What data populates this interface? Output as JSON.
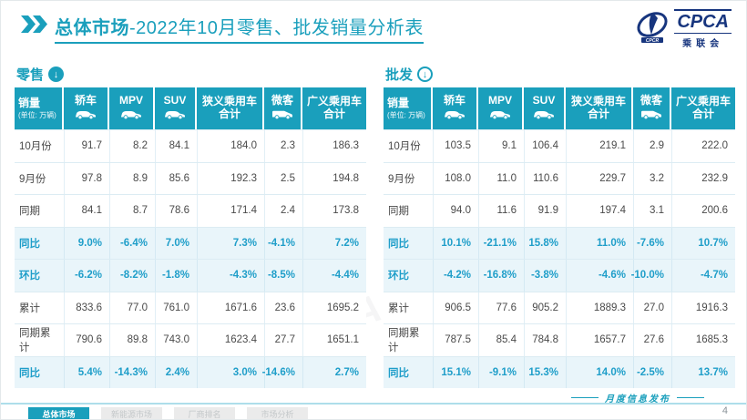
{
  "header": {
    "title_strong": "总体市场",
    "title_rest": "-2022年10月零售、批发销量分析表",
    "logo": {
      "cpca": "CPCA",
      "sub": "乘联会"
    }
  },
  "columns": [
    {
      "key": "sales",
      "label": "销量",
      "sub": "(单位: 万辆)"
    },
    {
      "key": "sedan",
      "label": "轿车",
      "icon": "car"
    },
    {
      "key": "mpv",
      "label": "MPV",
      "icon": "car"
    },
    {
      "key": "suv",
      "label": "SUV",
      "icon": "car"
    },
    {
      "key": "narrow-pv-total",
      "label": "狭义乘用车",
      "label2": "合计"
    },
    {
      "key": "microvan",
      "label": "微客",
      "icon": "van"
    },
    {
      "key": "broad-pv-total",
      "label": "广义乘用车",
      "label2": "合计"
    }
  ],
  "tables": [
    {
      "name": "零售",
      "rows": [
        {
          "label": "10月份",
          "type": "num",
          "values": [
            "91.7",
            "8.2",
            "84.1",
            "184.0",
            "2.3",
            "186.3"
          ]
        },
        {
          "label": "9月份",
          "type": "num",
          "values": [
            "97.8",
            "8.9",
            "85.6",
            "192.3",
            "2.5",
            "194.8"
          ]
        },
        {
          "label": "同期",
          "type": "num",
          "values": [
            "84.1",
            "8.7",
            "78.6",
            "171.4",
            "2.4",
            "173.8"
          ]
        },
        {
          "label": "同比",
          "type": "pct",
          "values": [
            "9.0%",
            "-6.4%",
            "7.0%",
            "7.3%",
            "-4.1%",
            "7.2%"
          ]
        },
        {
          "label": "环比",
          "type": "pct",
          "values": [
            "-6.2%",
            "-8.2%",
            "-1.8%",
            "-4.3%",
            "-8.5%",
            "-4.4%"
          ]
        },
        {
          "label": "累计",
          "type": "num",
          "values": [
            "833.6",
            "77.0",
            "761.0",
            "1671.6",
            "23.6",
            "1695.2"
          ]
        },
        {
          "label": "同期累计",
          "type": "num",
          "values": [
            "790.6",
            "89.8",
            "743.0",
            "1623.4",
            "27.7",
            "1651.1"
          ]
        },
        {
          "label": "同比",
          "type": "pct",
          "values": [
            "5.4%",
            "-14.3%",
            "2.4%",
            "3.0%",
            "-14.6%",
            "2.7%"
          ]
        }
      ]
    },
    {
      "name": "批发",
      "rows": [
        {
          "label": "10月份",
          "type": "num",
          "values": [
            "103.5",
            "9.1",
            "106.4",
            "219.1",
            "2.9",
            "222.0"
          ]
        },
        {
          "label": "9月份",
          "type": "num",
          "values": [
            "108.0",
            "11.0",
            "110.6",
            "229.7",
            "3.2",
            "232.9"
          ]
        },
        {
          "label": "同期",
          "type": "num",
          "values": [
            "94.0",
            "11.6",
            "91.9",
            "197.4",
            "3.1",
            "200.6"
          ]
        },
        {
          "label": "同比",
          "type": "pct",
          "values": [
            "10.1%",
            "-21.1%",
            "15.8%",
            "11.0%",
            "-7.6%",
            "10.7%"
          ]
        },
        {
          "label": "环比",
          "type": "pct",
          "values": [
            "-4.2%",
            "-16.8%",
            "-3.8%",
            "-4.6%",
            "-10.0%",
            "-4.7%"
          ]
        },
        {
          "label": "累计",
          "type": "num",
          "values": [
            "906.5",
            "77.6",
            "905.2",
            "1889.3",
            "27.0",
            "1916.3"
          ]
        },
        {
          "label": "同期累计",
          "type": "num",
          "values": [
            "787.5",
            "85.4",
            "784.8",
            "1657.7",
            "27.6",
            "1685.3"
          ]
        },
        {
          "label": "同比",
          "type": "pct",
          "values": [
            "15.1%",
            "-9.1%",
            "15.3%",
            "14.0%",
            "-2.5%",
            "13.7%"
          ]
        }
      ]
    }
  ],
  "footer": {
    "tabs": [
      {
        "label": "总体市场",
        "active": true
      },
      {
        "label": "新能源市场",
        "active": false
      },
      {
        "label": "厂商排名",
        "active": false
      },
      {
        "label": "市场分析",
        "active": false
      }
    ],
    "note": "月度信息发布",
    "page": "4"
  },
  "colors": {
    "accent": "#1a9fbc",
    "pct_text": "#1f9ec9",
    "pct_row_bg": "#e9f5fa",
    "logo_blue": "#17357e"
  },
  "icons": {
    "chevrons": "double-chevron-right",
    "retail_arrow": "arrow-down-filled-circle",
    "wholesale_arrow": "arrow-down-outline-circle",
    "columns": [
      "car-icon",
      "van-icon"
    ]
  }
}
